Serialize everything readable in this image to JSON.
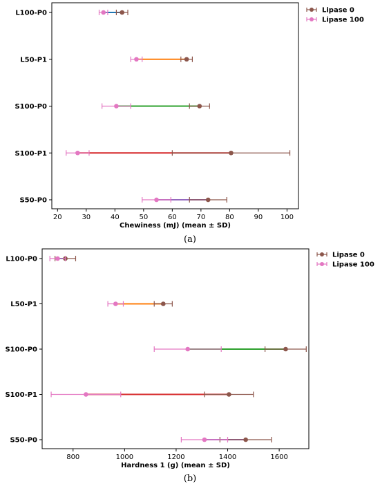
{
  "captions": [
    "(a)",
    "(b)"
  ],
  "colors": {
    "lipase0": "#8c564b",
    "lipase100": "#e377c2",
    "connectors": [
      "#1f77b4",
      "#ff7f0e",
      "#2ca02c",
      "#d62728",
      "#9467bd"
    ]
  },
  "chart_data": [
    {
      "type": "errorbar-dumbbell",
      "orientation": "horizontal",
      "xlabel": "Chewiness (mJ) (mean ± SD)",
      "xlim": [
        18,
        104
      ],
      "xticks": [
        20,
        30,
        40,
        50,
        60,
        70,
        80,
        90,
        100
      ],
      "categories": [
        "L100-P0",
        "L50-P1",
        "S100-P0",
        "S100-P1",
        "S50-P0"
      ],
      "legend_position": "outside-top-right",
      "series": [
        {
          "name": "Lipase 0",
          "values": [
            42.5,
            65.0,
            69.5,
            80.5,
            72.5
          ],
          "sd": [
            2.0,
            2.0,
            3.5,
            20.5,
            6.5
          ]
        },
        {
          "name": "Lipase 100",
          "values": [
            36.0,
            47.5,
            40.5,
            27.0,
            54.5
          ],
          "sd": [
            1.5,
            2.0,
            5.0,
            4.0,
            5.0
          ]
        }
      ]
    },
    {
      "type": "errorbar-dumbbell",
      "orientation": "horizontal",
      "xlabel": "Hardness 1 (g) (mean ± SD)",
      "xlim": [
        680,
        1715
      ],
      "xticks": [
        800,
        1000,
        1200,
        1400,
        1600
      ],
      "categories": [
        "L100-P0",
        "L50-P1",
        "S100-P0",
        "S100-P1",
        "S50-P0"
      ],
      "legend_position": "outside-top-right",
      "series": [
        {
          "name": "Lipase 0",
          "values": [
            770,
            1150,
            1625,
            1405,
            1470
          ],
          "sd": [
            40,
            35,
            80,
            95,
            100
          ]
        },
        {
          "name": "Lipase 100",
          "values": [
            740,
            965,
            1245,
            850,
            1310
          ],
          "sd": [
            30,
            30,
            130,
            135,
            90
          ]
        }
      ]
    }
  ]
}
